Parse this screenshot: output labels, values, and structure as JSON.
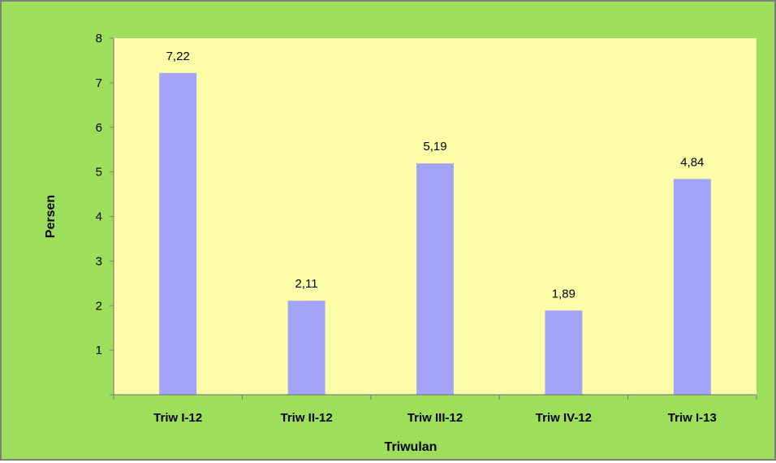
{
  "chart_data": {
    "type": "bar",
    "categories": [
      "Triw I-12",
      "Triw II-12",
      "Triw III-12",
      "Triw IV-12",
      "Triw I-13"
    ],
    "values": [
      7.22,
      2.11,
      5.19,
      1.89,
      4.84
    ],
    "value_labels": [
      "7,22",
      "2,11",
      "5,19",
      "1,89",
      "4,84"
    ],
    "xlabel": "Triwulan",
    "ylabel": "Persen",
    "ylim": [
      0,
      8
    ],
    "yticks": [
      "1",
      "2",
      "3",
      "4",
      "5",
      "6",
      "7",
      "8"
    ],
    "grid": false,
    "legend": "none",
    "colors": {
      "frame_background": "#9ddf5b",
      "plot_background": "#fefea8",
      "bar": "#a3a3fa",
      "axis": "#808080",
      "text": "#000000"
    }
  }
}
